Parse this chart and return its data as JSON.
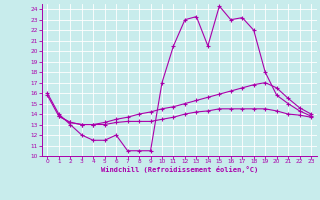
{
  "xlabel": "Windchill (Refroidissement éolien,°C)",
  "bg_color": "#c8ecec",
  "line_color": "#aa00aa",
  "grid_color": "#aacccc",
  "xlim": [
    -0.5,
    23.5
  ],
  "ylim": [
    10,
    24.5
  ],
  "xticks": [
    0,
    1,
    2,
    3,
    4,
    5,
    6,
    7,
    8,
    9,
    10,
    11,
    12,
    13,
    14,
    15,
    16,
    17,
    18,
    19,
    20,
    21,
    22,
    23
  ],
  "yticks": [
    10,
    11,
    12,
    13,
    14,
    15,
    16,
    17,
    18,
    19,
    20,
    21,
    22,
    23,
    24
  ],
  "line1_x": [
    0,
    1,
    2,
    3,
    4,
    5,
    6,
    7,
    8,
    9,
    10,
    11,
    12,
    13,
    14,
    15,
    16,
    17,
    18,
    19,
    20,
    21,
    22,
    23
  ],
  "line1_y": [
    16.0,
    14.0,
    13.0,
    12.0,
    11.5,
    11.5,
    12.0,
    10.5,
    10.5,
    10.5,
    17.0,
    20.5,
    23.0,
    23.3,
    20.5,
    24.3,
    23.0,
    23.2,
    22.0,
    18.0,
    15.8,
    15.0,
    14.3,
    13.8
  ],
  "line2_x": [
    0,
    1,
    2,
    3,
    4,
    5,
    6,
    7,
    8,
    9,
    10,
    11,
    12,
    13,
    14,
    15,
    16,
    17,
    18,
    19,
    20,
    21,
    22,
    23
  ],
  "line2_y": [
    15.8,
    13.8,
    13.2,
    13.0,
    13.0,
    13.2,
    13.5,
    13.7,
    14.0,
    14.2,
    14.5,
    14.7,
    15.0,
    15.3,
    15.6,
    15.9,
    16.2,
    16.5,
    16.8,
    17.0,
    16.5,
    15.5,
    14.6,
    14.0
  ],
  "line3_x": [
    1,
    2,
    3,
    4,
    5,
    6,
    7,
    8,
    9,
    10,
    11,
    12,
    13,
    14,
    15,
    16,
    17,
    18,
    19,
    20,
    21,
    22,
    23
  ],
  "line3_y": [
    13.8,
    13.2,
    13.0,
    13.0,
    13.0,
    13.2,
    13.3,
    13.3,
    13.3,
    13.5,
    13.7,
    14.0,
    14.2,
    14.3,
    14.5,
    14.5,
    14.5,
    14.5,
    14.5,
    14.3,
    14.0,
    13.9,
    13.7
  ]
}
